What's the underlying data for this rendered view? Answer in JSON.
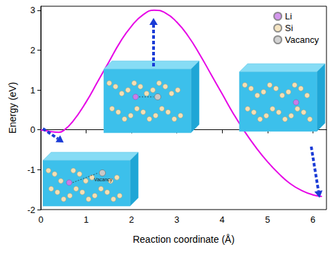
{
  "chart_data": {
    "type": "line",
    "xlabel": "Reaction coordinate (Å)",
    "ylabel": "Energy (eV)",
    "x": [
      0,
      0.2,
      0.4,
      0.5,
      0.7,
      1.0,
      1.25,
      1.5,
      1.75,
      2.0,
      2.25,
      2.5,
      2.75,
      3.0,
      3.25,
      3.5,
      3.75,
      4.0,
      4.25,
      4.5,
      4.75,
      5.0,
      5.25,
      5.5,
      5.75,
      6.0,
      6.2
    ],
    "values": [
      0,
      -0.04,
      -0.06,
      -0.02,
      0.2,
      0.7,
      1.2,
      1.7,
      2.2,
      2.6,
      2.88,
      3.0,
      2.93,
      2.7,
      2.35,
      1.9,
      1.4,
      0.9,
      0.4,
      -0.05,
      -0.45,
      -0.8,
      -1.1,
      -1.35,
      -1.52,
      -1.63,
      -1.67
    ],
    "color": "#e600e6",
    "line_style": "solid",
    "xlim": [
      0,
      6.3
    ],
    "ylim": [
      -2,
      3.1
    ],
    "xticks": [
      0,
      1,
      2,
      3,
      4,
      5,
      6
    ],
    "yticks": [
      -2,
      -1,
      0,
      1,
      2,
      3
    ],
    "legend": "upper right",
    "atoms": [
      {
        "name": "Li",
        "color": "#c97de8"
      },
      {
        "name": "Si",
        "color": "#f3dfb4"
      },
      {
        "name": "Vacancy",
        "color": "#c8c8c8"
      }
    ],
    "annotations": [
      "Vacancy"
    ]
  }
}
